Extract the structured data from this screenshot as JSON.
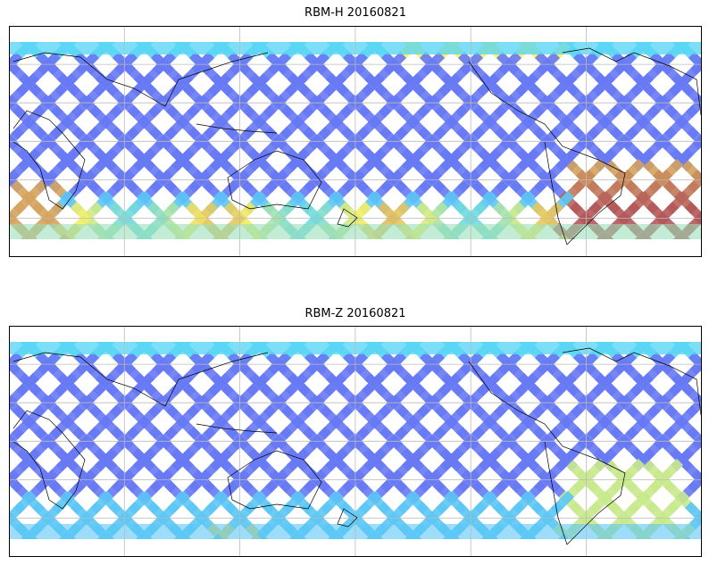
{
  "panels": [
    {
      "title": "RBM-H 20160821"
    },
    {
      "title": "RBM-Z 20160821"
    }
  ],
  "colormap": "jet",
  "colors": {
    "low": "#6a6af5",
    "mid": "#5bd6f5",
    "high": "#f5f064",
    "max": "#b4585a",
    "coast": "#000000",
    "grid": "#bbbbbb"
  }
}
